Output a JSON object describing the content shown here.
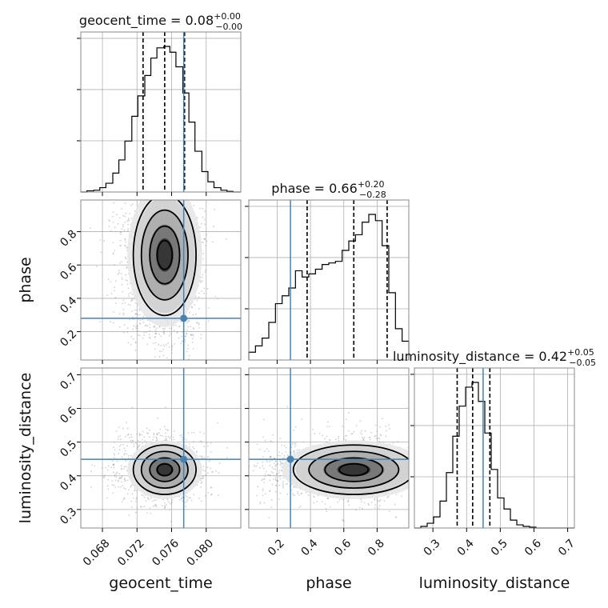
{
  "chart_data": {
    "type": "corner",
    "parameters": [
      "geocent_time",
      "phase",
      "luminosity_distance"
    ],
    "truth_color": "#4682b4",
    "hist_color": "#000000",
    "grid": true,
    "params": [
      {
        "name": "geocent_time",
        "axis_label": "geocent_time",
        "range": [
          0.0655,
          0.084
        ],
        "ticks": [
          0.068,
          0.072,
          0.076,
          0.08
        ],
        "tick_labels": [
          "0.068",
          "0.072",
          "0.076",
          "0.080"
        ],
        "title": {
          "main": "geocent_time = 0.08",
          "plus": "+0.00",
          "minus": "−0.00"
        },
        "truth": 0.0774,
        "quantiles": [
          0.0727,
          0.0752,
          0.0775
        ],
        "bin_edges": [
          0.0655,
          0.0662,
          0.067,
          0.0677,
          0.0684,
          0.0692,
          0.0699,
          0.0706,
          0.0714,
          0.0721,
          0.0729,
          0.0736,
          0.0743,
          0.0751,
          0.0758,
          0.0765,
          0.0773,
          0.078,
          0.0787,
          0.0795,
          0.0802,
          0.0809,
          0.0817,
          0.0824,
          0.0831,
          0.084
        ],
        "hist": [
          0,
          0.008,
          0.012,
          0.03,
          0.06,
          0.13,
          0.22,
          0.35,
          0.52,
          0.66,
          0.8,
          0.92,
          0.99,
          1.0,
          0.96,
          0.86,
          0.68,
          0.48,
          0.28,
          0.14,
          0.07,
          0.03,
          0.012,
          0.004,
          0
        ]
      },
      {
        "name": "phase",
        "axis_label": "phase",
        "range": [
          0.03,
          0.99
        ],
        "ticks": [
          0.2,
          0.4,
          0.6,
          0.8
        ],
        "tick_labels": [
          "0.2",
          "0.4",
          "0.6",
          "0.8"
        ],
        "title": {
          "main": "phase = 0.66",
          "plus": "+0.20",
          "minus": "−0.28"
        },
        "truth": 0.28,
        "quantiles": [
          0.38,
          0.66,
          0.86
        ],
        "bin_edges": [
          0.03,
          0.07,
          0.11,
          0.15,
          0.19,
          0.23,
          0.27,
          0.31,
          0.35,
          0.39,
          0.43,
          0.47,
          0.51,
          0.55,
          0.59,
          0.63,
          0.67,
          0.71,
          0.75,
          0.79,
          0.83,
          0.87,
          0.91,
          0.95,
          0.99
        ],
        "hist": [
          0.05,
          0.09,
          0.14,
          0.24,
          0.36,
          0.41,
          0.46,
          0.57,
          0.53,
          0.55,
          0.58,
          0.61,
          0.62,
          0.63,
          0.7,
          0.76,
          0.8,
          0.88,
          0.93,
          0.89,
          0.73,
          0.43,
          0.2,
          0.12
        ]
      },
      {
        "name": "luminosity_distance",
        "axis_label": "luminosity_distance",
        "range": [
          0.245,
          0.72
        ],
        "ticks": [
          0.3,
          0.4,
          0.5,
          0.6,
          0.7
        ],
        "tick_labels": [
          "0.3",
          "0.4",
          "0.5",
          "0.6",
          "0.7"
        ],
        "title": {
          "main": "luminosity_distance = 0.42",
          "plus": "+0.05",
          "minus": "−0.05"
        },
        "truth": 0.449,
        "quantiles": [
          0.372,
          0.418,
          0.469
        ],
        "bin_edges": [
          0.245,
          0.264,
          0.283,
          0.302,
          0.321,
          0.34,
          0.359,
          0.378,
          0.397,
          0.416,
          0.435,
          0.454,
          0.473,
          0.492,
          0.511,
          0.53,
          0.549,
          0.568,
          0.587,
          0.606,
          0.625,
          0.644,
          0.663,
          0.682,
          0.701,
          0.72
        ],
        "hist": [
          0,
          0.01,
          0.03,
          0.07,
          0.17,
          0.35,
          0.58,
          0.77,
          0.89,
          0.92,
          0.8,
          0.6,
          0.37,
          0.19,
          0.12,
          0.05,
          0.02,
          0.01,
          0.005,
          0,
          0,
          0,
          0,
          0,
          0
        ]
      }
    ]
  }
}
